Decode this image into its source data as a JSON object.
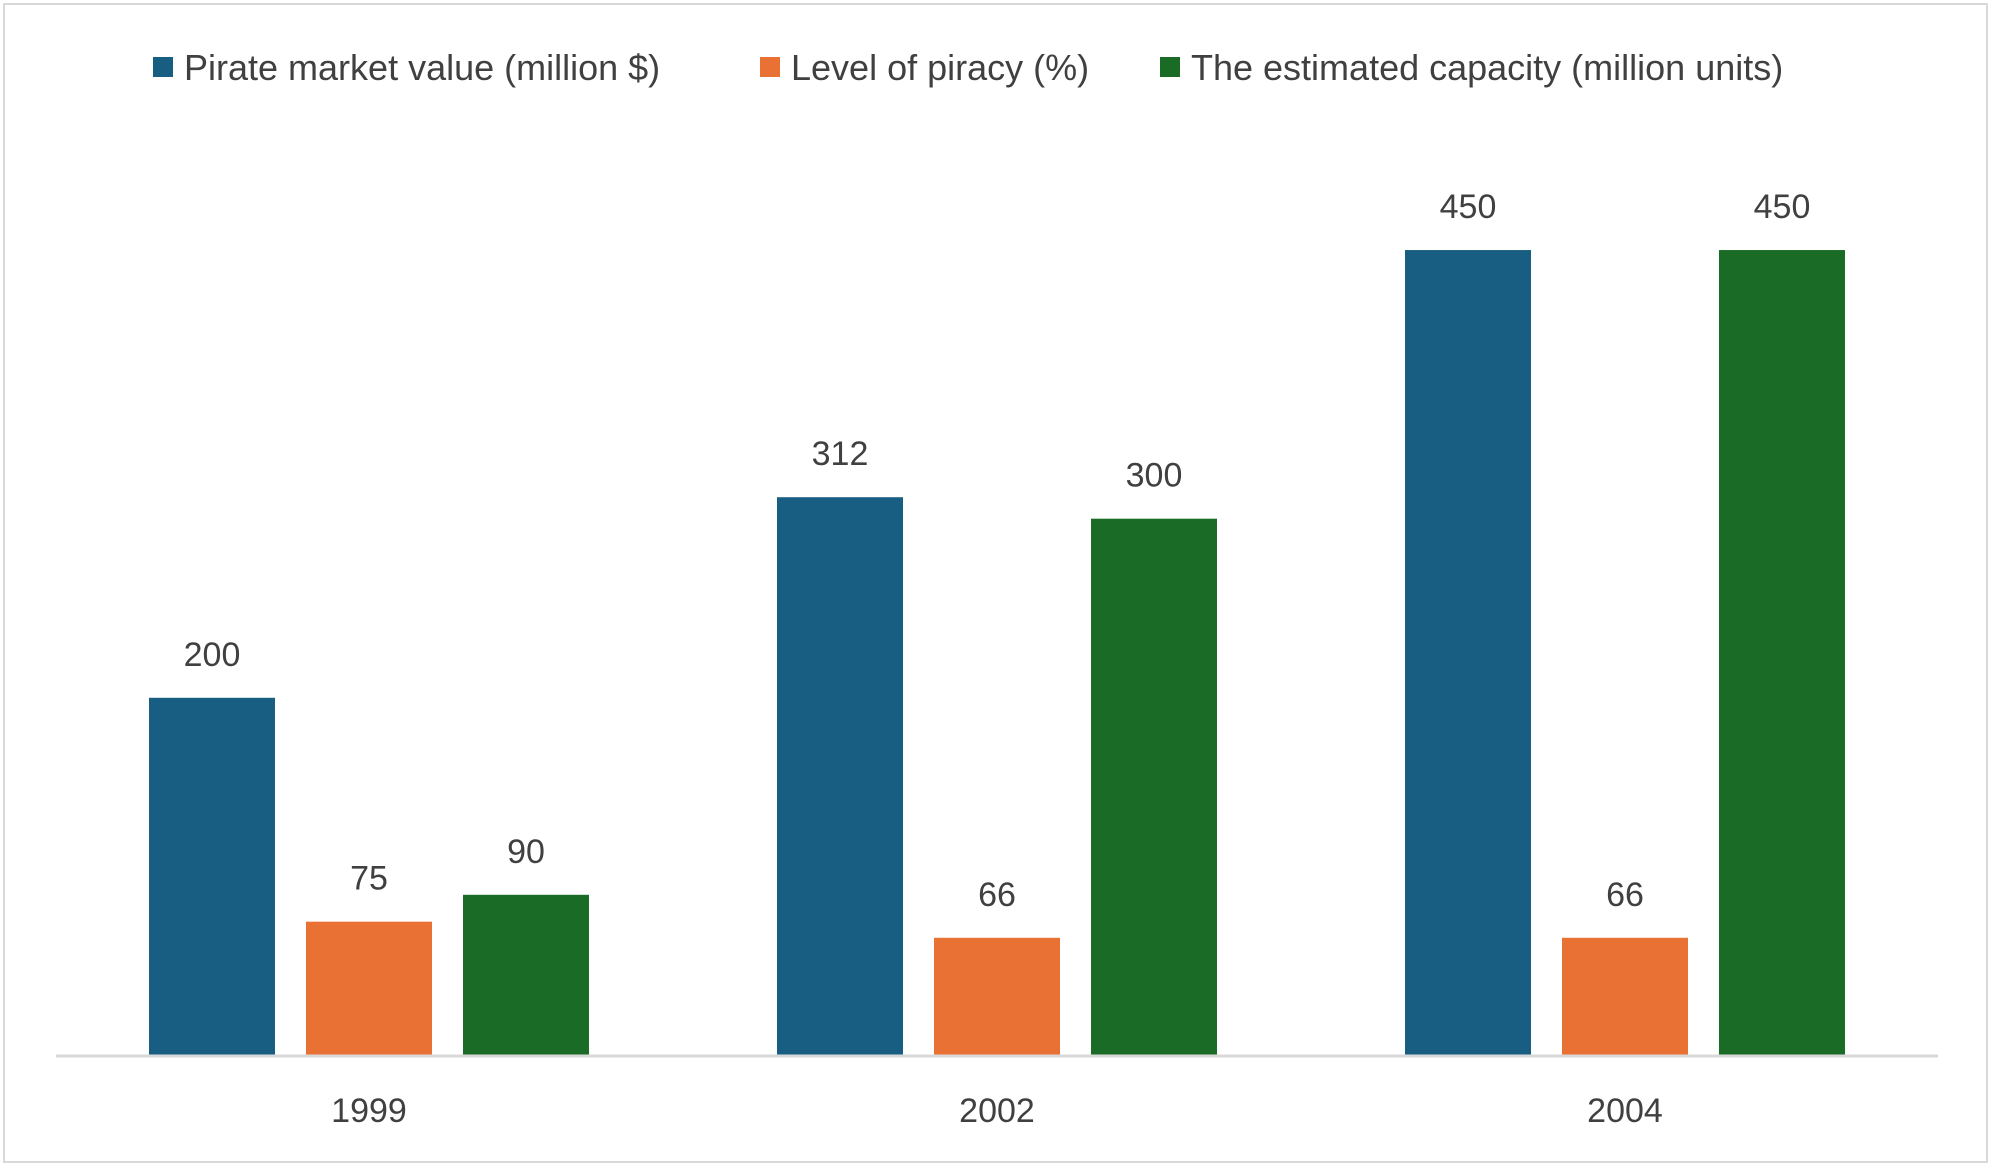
{
  "chart_data": {
    "type": "bar",
    "title": "",
    "xlabel": "",
    "ylabel": "",
    "categories": [
      "1999",
      "2002",
      "2004"
    ],
    "series": [
      {
        "name": "Pirate market value (million $)",
        "values": [
          200,
          312,
          450
        ],
        "color": "#175e82"
      },
      {
        "name": "Level of piracy (%)",
        "values": [
          75,
          66,
          66
        ],
        "color": "#e87133"
      },
      {
        "name": "The estimated capacity (million units)",
        "values": [
          90,
          300,
          450
        ],
        "color": "#1a6b25"
      }
    ],
    "ylim": [
      0,
      500
    ],
    "grid": false,
    "legend_position": "top",
    "data_labels": true
  }
}
